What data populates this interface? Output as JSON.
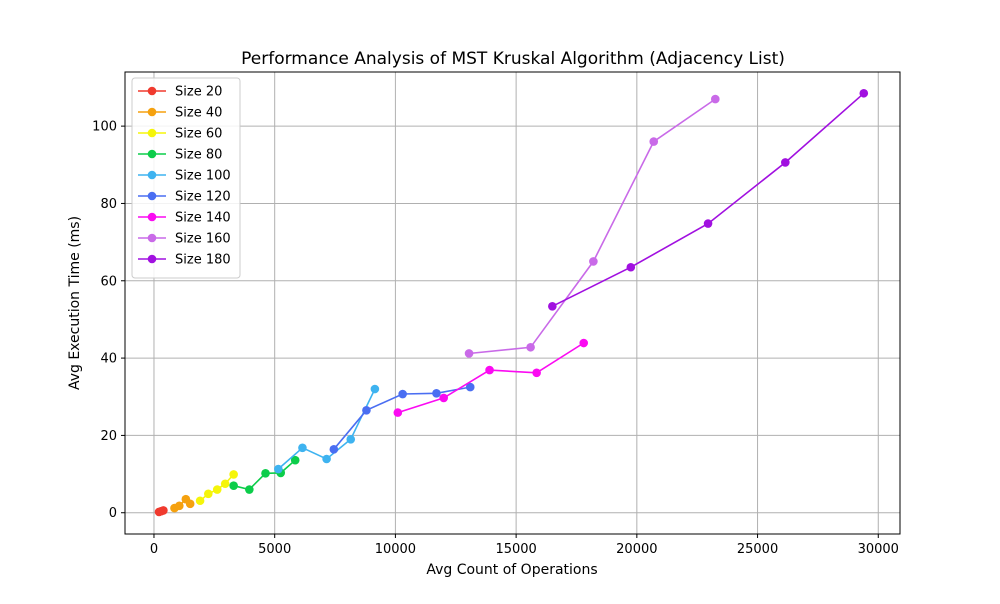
{
  "chart_data": {
    "type": "line",
    "title": "Performance Analysis of MST Kruskal Algorithm (Adjacency List)",
    "xlabel": "Avg Count of Operations",
    "ylabel": "Avg Execution Time (ms)",
    "xlim": [
      -1200,
      30900
    ],
    "ylim": [
      -5.5,
      114
    ],
    "xticks": [
      0,
      5000,
      10000,
      15000,
      20000,
      25000,
      30000
    ],
    "yticks": [
      0,
      20,
      40,
      60,
      80,
      100
    ],
    "grid": true,
    "legend_position": "top-left",
    "series": [
      {
        "name": "Size 20",
        "color": "#f03a2e",
        "points": [
          [
            210,
            0.2
          ],
          [
            300,
            0.4
          ],
          [
            390,
            0.6
          ]
        ]
      },
      {
        "name": "Size 40",
        "color": "#f5a10f",
        "points": [
          [
            850,
            1.2
          ],
          [
            1050,
            1.8
          ],
          [
            1320,
            3.5
          ],
          [
            1500,
            2.3
          ]
        ]
      },
      {
        "name": "Size 60",
        "color": "#f5f50a",
        "points": [
          [
            1910,
            3.1
          ],
          [
            2250,
            4.9
          ],
          [
            2620,
            6.0
          ],
          [
            2950,
            7.5
          ],
          [
            3300,
            9.9
          ]
        ]
      },
      {
        "name": "Size 80",
        "color": "#0ccd4a",
        "points": [
          [
            3300,
            7.0
          ],
          [
            3950,
            6.0
          ],
          [
            4620,
            10.2
          ],
          [
            5250,
            10.3
          ],
          [
            5850,
            13.6
          ]
        ]
      },
      {
        "name": "Size 100",
        "color": "#3eb3f0",
        "points": [
          [
            5150,
            11.3
          ],
          [
            6150,
            16.8
          ],
          [
            7150,
            13.9
          ],
          [
            8150,
            19.0
          ],
          [
            9150,
            32.0
          ]
        ]
      },
      {
        "name": "Size 120",
        "color": "#4a6ef2",
        "points": [
          [
            7450,
            16.4
          ],
          [
            8800,
            26.5
          ],
          [
            10300,
            30.7
          ],
          [
            11700,
            30.9
          ],
          [
            13100,
            32.5
          ]
        ]
      },
      {
        "name": "Size 140",
        "color": "#fb0af2",
        "points": [
          [
            10100,
            25.9
          ],
          [
            12000,
            29.7
          ],
          [
            13900,
            36.9
          ],
          [
            15850,
            36.2
          ],
          [
            17800,
            43.9
          ]
        ]
      },
      {
        "name": "Size 160",
        "color": "#c96ae8",
        "points": [
          [
            13050,
            41.2
          ],
          [
            15600,
            42.8
          ],
          [
            18200,
            65.0
          ],
          [
            20700,
            96.0
          ],
          [
            23250,
            107.0
          ]
        ]
      },
      {
        "name": "Size 180",
        "color": "#a110e0",
        "points": [
          [
            16500,
            53.4
          ],
          [
            19750,
            63.5
          ],
          [
            22950,
            74.8
          ],
          [
            26150,
            90.6
          ],
          [
            29400,
            108.5
          ]
        ]
      }
    ]
  }
}
